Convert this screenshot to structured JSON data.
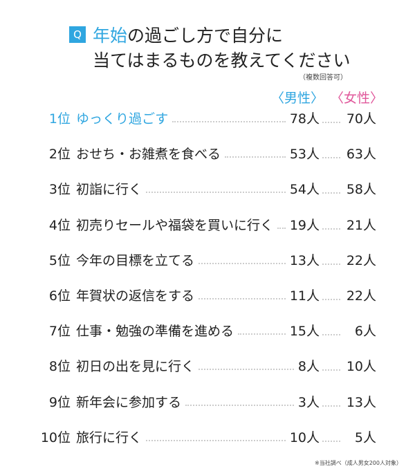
{
  "badge": "Q",
  "title": {
    "highlight": "年始",
    "line1_rest": "の過ごし方で自分に",
    "line2": "当てはまるものを教えてください",
    "note": "（複数回答可）"
  },
  "headers": {
    "male": "〈男性〉",
    "female": "〈女性〉"
  },
  "table": {
    "rows": [
      [
        "1位",
        "ゆっくり過ごす",
        "78人",
        "70人"
      ],
      [
        "2位",
        "おせち・お雑煮を食べる",
        "53人",
        "63人"
      ],
      [
        "3位",
        "初詣に行く",
        "54人",
        "58人"
      ],
      [
        "4位",
        "初売りセールや福袋を買いに行く",
        "19人",
        "21人"
      ],
      [
        "5位",
        "今年の目標を立てる",
        "13人",
        "22人"
      ],
      [
        "6位",
        "年賀状の返信をする",
        "11人",
        "22人"
      ],
      [
        "7位",
        "仕事・勉強の準備を進める",
        "15人",
        "6人"
      ],
      [
        "8位",
        "初日の出を見に行く",
        "8人",
        "10人"
      ],
      [
        "9位",
        "新年会に参加する",
        "3人",
        "13人"
      ],
      [
        "10位",
        "旅行に行く",
        "10人",
        "5人"
      ]
    ]
  },
  "footer": "※当社調べ（成人男女200人対象）"
}
